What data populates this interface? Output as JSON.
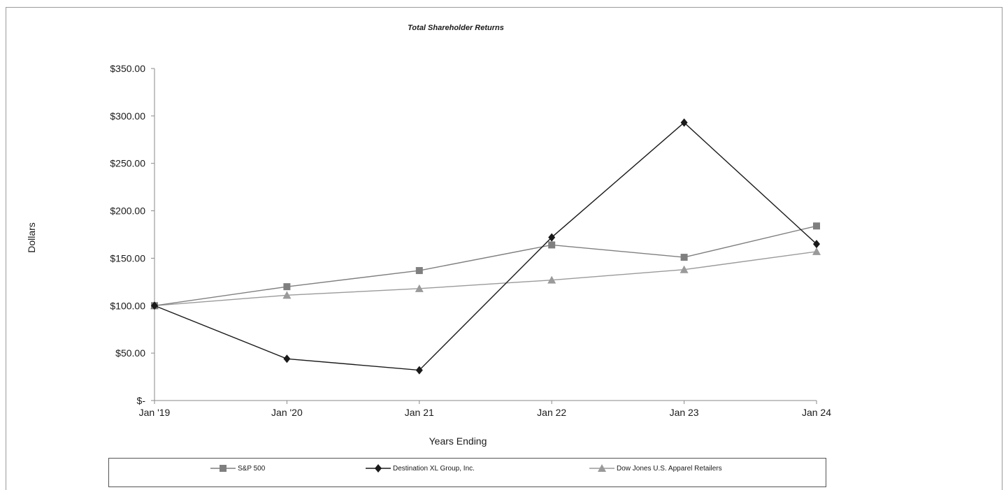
{
  "chart_data": {
    "type": "line",
    "title": "Total Shareholder Returns",
    "xlabel": "Years Ending",
    "ylabel": "Dollars",
    "categories": [
      "Jan '19",
      "Jan '20",
      "Jan 21",
      "Jan 22",
      "Jan 23",
      "Jan 24"
    ],
    "ylim": [
      0,
      350
    ],
    "yticks": [
      0,
      50,
      100,
      150,
      200,
      250,
      300,
      350
    ],
    "ytick_labels": [
      "$-",
      "$50.00",
      "$100.00",
      "$150.00",
      "$200.00",
      "$250.00",
      "$300.00",
      "$350.00"
    ],
    "grid": false,
    "legend_position": "bottom",
    "series": [
      {
        "name": "S&P 500",
        "marker": "square",
        "color": "#7f7f7f",
        "values": [
          100,
          120,
          137,
          164,
          151,
          184
        ]
      },
      {
        "name": "Destination XL Group, Inc.",
        "marker": "diamond",
        "color": "#1a1a1a",
        "values": [
          100,
          44,
          32,
          172,
          293,
          165
        ]
      },
      {
        "name": "Dow Jones U.S. Apparel Retailers",
        "marker": "triangle",
        "color": "#9a9a9a",
        "values": [
          100,
          111,
          118,
          127,
          138,
          157
        ]
      }
    ]
  }
}
